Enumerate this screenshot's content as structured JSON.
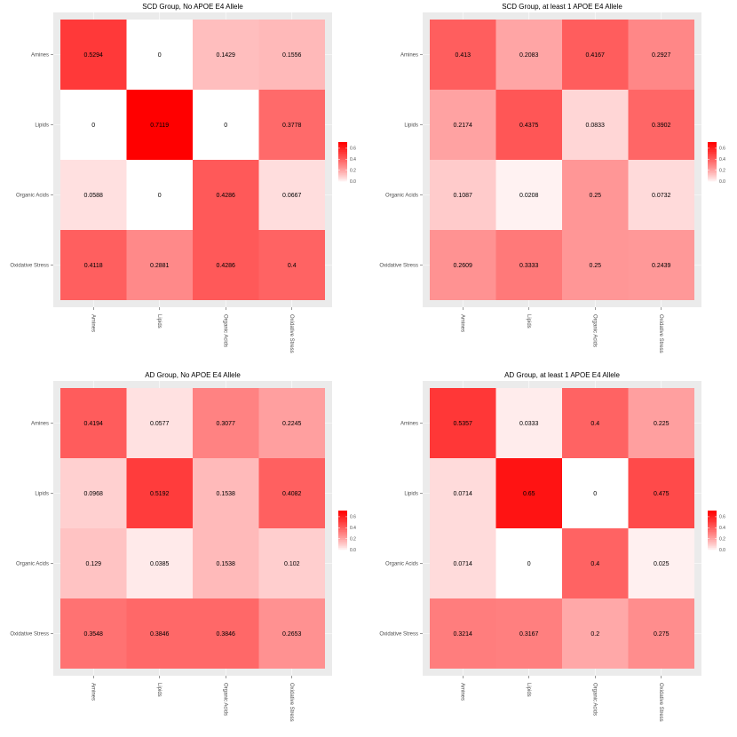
{
  "chart_data": [
    {
      "type": "heatmap",
      "title": "SCD Group, No APOE E4 Allele",
      "row_labels": [
        "Amines",
        "Lipids",
        "Organic Acids",
        "Oxidative Stress"
      ],
      "col_labels": [
        "Amines",
        "Lipids",
        "Organic Acids",
        "Oxidative Stress"
      ],
      "values": [
        [
          0.5294,
          0,
          0.1429,
          0.1556
        ],
        [
          0,
          0.7119,
          0,
          0.3778
        ],
        [
          0.0588,
          0,
          0.4286,
          0.0667
        ],
        [
          0.4118,
          0.2881,
          0.4286,
          0.4
        ]
      ],
      "value_labels": [
        [
          "0.5294",
          "0",
          "0.1429",
          "0.1556"
        ],
        [
          "0",
          "0.7119",
          "0",
          "0.3778"
        ],
        [
          "0.0588",
          "0",
          "0.4286",
          "0.0667"
        ],
        [
          "0.4118",
          "0.2881",
          "0.4286",
          "0.4"
        ]
      ],
      "color_range": [
        0,
        0.7119
      ],
      "legend_ticks": [
        "0.0",
        "0.2",
        "0.4",
        "0.6"
      ],
      "legend_tick_values": [
        0,
        0.2,
        0.4,
        0.6
      ]
    },
    {
      "type": "heatmap",
      "title": "SCD Group, at least 1 APOE E4 Allele",
      "row_labels": [
        "Amines",
        "Lipids",
        "Organic Acids",
        "Oxidative Stress"
      ],
      "col_labels": [
        "Amines",
        "Lipids",
        "Organic Acids",
        "Oxidative Stress"
      ],
      "values": [
        [
          0.413,
          0.2083,
          0.4167,
          0.2927
        ],
        [
          0.2174,
          0.4375,
          0.0833,
          0.3902
        ],
        [
          0.1087,
          0.0208,
          0.25,
          0.0732
        ],
        [
          0.2609,
          0.3333,
          0.25,
          0.2439
        ]
      ],
      "value_labels": [
        [
          "0.413",
          "0.2083",
          "0.4167",
          "0.2927"
        ],
        [
          "0.2174",
          "0.4375",
          "0.0833",
          "0.3902"
        ],
        [
          "0.1087",
          "0.0208",
          "0.25",
          "0.0732"
        ],
        [
          "0.2609",
          "0.3333",
          "0.25",
          "0.2439"
        ]
      ],
      "color_range": [
        0,
        0.7119
      ],
      "legend_ticks": [
        "0.0",
        "0.2",
        "0.4",
        "0.6"
      ],
      "legend_tick_values": [
        0,
        0.2,
        0.4,
        0.6
      ]
    },
    {
      "type": "heatmap",
      "title": "AD Group, No APOE E4 Allele",
      "row_labels": [
        "Amines",
        "Lipids",
        "Organic Acids",
        "Oxidative Stress"
      ],
      "col_labels": [
        "Amines",
        "Lipids",
        "Organic Acids",
        "Oxidative Stress"
      ],
      "values": [
        [
          0.4194,
          0.0577,
          0.3077,
          0.2245
        ],
        [
          0.0968,
          0.5192,
          0.1538,
          0.4082
        ],
        [
          0.129,
          0.0385,
          0.1538,
          0.102
        ],
        [
          0.3548,
          0.3846,
          0.3846,
          0.2653
        ]
      ],
      "value_labels": [
        [
          "0.4194",
          "0.0577",
          "0.3077",
          "0.2245"
        ],
        [
          "0.0968",
          "0.5192",
          "0.1538",
          "0.4082"
        ],
        [
          "0.129",
          "0.0385",
          "0.1538",
          "0.102"
        ],
        [
          "0.3548",
          "0.3846",
          "0.3846",
          "0.2653"
        ]
      ],
      "color_range": [
        0,
        0.7119
      ],
      "legend_ticks": [
        "0.0",
        "0.2",
        "0.4",
        "0.6"
      ],
      "legend_tick_values": [
        0,
        0.2,
        0.4,
        0.6
      ]
    },
    {
      "type": "heatmap",
      "title": "AD Group, at least 1 APOE E4 Allele",
      "row_labels": [
        "Amines",
        "Lipids",
        "Organic Acids",
        "Oxidative Stress"
      ],
      "col_labels": [
        "Amines",
        "Lipids",
        "Organic Acids",
        "Oxidative Stress"
      ],
      "values": [
        [
          0.5357,
          0.0333,
          0.4,
          0.225
        ],
        [
          0.0714,
          0.65,
          0,
          0.475
        ],
        [
          0.0714,
          0,
          0.4,
          0.025
        ],
        [
          0.3214,
          0.3167,
          0.2,
          0.275
        ]
      ],
      "value_labels": [
        [
          "0.5357",
          "0.0333",
          "0.4",
          "0.225"
        ],
        [
          "0.0714",
          "0.65",
          "0",
          "0.475"
        ],
        [
          "0.0714",
          "0",
          "0.4",
          "0.025"
        ],
        [
          "0.3214",
          "0.3167",
          "0.2",
          "0.275"
        ]
      ],
      "color_range": [
        0,
        0.7119
      ],
      "legend_ticks": [
        "0.0",
        "0.2",
        "0.4",
        "0.6"
      ],
      "legend_tick_values": [
        0,
        0.2,
        0.4,
        0.6
      ]
    }
  ],
  "colors": {
    "low": "#ffffff",
    "high": "#ff0000",
    "panel_background": "#ebebeb",
    "grid": "#ffffff",
    "text": "#000000",
    "axis_text": "#4d4d4d"
  },
  "grid": true,
  "legend_placement": "right"
}
